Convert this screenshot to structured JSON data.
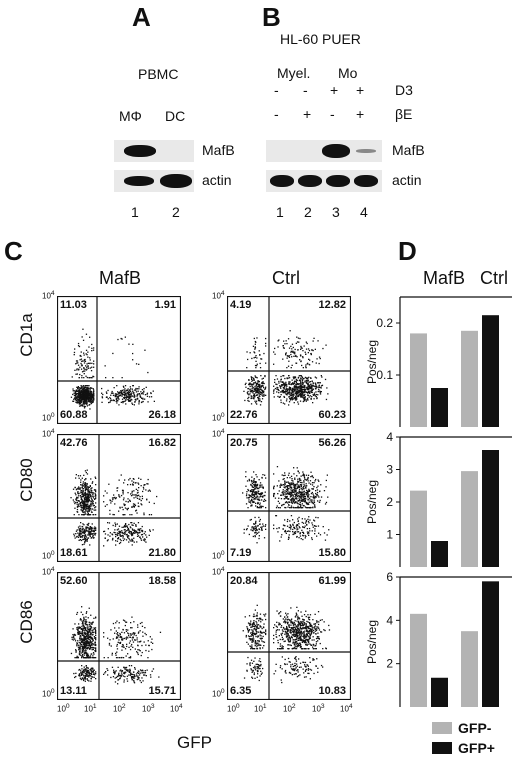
{
  "panels": {
    "A": "A",
    "B": "B",
    "C": "C",
    "D": "D"
  },
  "panel_a": {
    "group": "PBMC",
    "lanes": [
      "MΦ",
      "DC"
    ],
    "lane_numbers": [
      "1",
      "2"
    ],
    "rows": [
      "MafB",
      "actin"
    ]
  },
  "panel_b": {
    "cell_line": "HL-60 PUER",
    "groups": [
      "Myel.",
      "Mo"
    ],
    "treatments": [
      {
        "name": "D3",
        "signs": [
          "-",
          "-",
          "+",
          "+"
        ]
      },
      {
        "name": "βE",
        "signs": [
          "-",
          "+",
          "-",
          "+"
        ]
      }
    ],
    "lane_numbers": [
      "1",
      "2",
      "3",
      "4"
    ],
    "rows": [
      "MafB",
      "actin"
    ]
  },
  "panel_c": {
    "columns": [
      "MafB",
      "Ctrl"
    ],
    "markers": [
      "CD1a",
      "CD80",
      "CD86"
    ],
    "x_label": "GFP",
    "axis_ticks": [
      "10",
      "10",
      "10",
      "10",
      "10"
    ],
    "axis_exponents": [
      "0",
      "1",
      "2",
      "3",
      "4"
    ],
    "plots": [
      {
        "q": [
          "11.03",
          "1.91",
          "60.88",
          "26.18"
        ]
      },
      {
        "q": [
          "4.19",
          "12.82",
          "22.76",
          "60.23"
        ]
      },
      {
        "q": [
          "42.76",
          "16.82",
          "18.61",
          "21.80"
        ]
      },
      {
        "q": [
          "20.75",
          "56.26",
          "7.19",
          "15.80"
        ]
      },
      {
        "q": [
          "52.60",
          "18.58",
          "13.11",
          "15.71"
        ]
      },
      {
        "q": [
          "20.84",
          "61.99",
          "6.35",
          "10.83"
        ]
      }
    ]
  },
  "panel_d": {
    "columns": [
      "MafB",
      "Ctrl"
    ],
    "ylabel": "Pos/neg",
    "legend": [
      {
        "label": "GFP-",
        "color": "#b3b3b3"
      },
      {
        "label": "GFP+",
        "color": "#111111"
      }
    ]
  },
  "chart_data": [
    {
      "type": "bar",
      "categories": [
        "MafB",
        "Ctrl"
      ],
      "ylabel": "Pos/neg",
      "series": [
        {
          "name": "GFP-",
          "values": [
            0.18,
            0.185
          ]
        },
        {
          "name": "GFP+",
          "values": [
            0.075,
            0.215
          ]
        }
      ],
      "ylim": [
        0,
        0.25
      ],
      "yticks": [
        "0.1",
        "0.2"
      ],
      "ytick_values": [
        0.1,
        0.2
      ]
    },
    {
      "type": "bar",
      "categories": [
        "MafB",
        "Ctrl"
      ],
      "ylabel": "Pos/neg",
      "series": [
        {
          "name": "GFP-",
          "values": [
            2.35,
            2.95
          ]
        },
        {
          "name": "GFP+",
          "values": [
            0.8,
            3.6
          ]
        }
      ],
      "ylim": [
        0,
        4
      ],
      "yticks": [
        "1",
        "2",
        "3",
        "4"
      ],
      "ytick_values": [
        1,
        2,
        3,
        4
      ]
    },
    {
      "type": "bar",
      "categories": [
        "MafB",
        "Ctrl"
      ],
      "ylabel": "Pos/neg",
      "series": [
        {
          "name": "GFP-",
          "values": [
            4.3,
            3.5
          ]
        },
        {
          "name": "GFP+",
          "values": [
            1.35,
            5.8
          ]
        }
      ],
      "ylim": [
        0,
        6
      ],
      "yticks": [
        "2",
        "4",
        "6"
      ],
      "ytick_values": [
        2,
        4,
        6
      ]
    }
  ]
}
